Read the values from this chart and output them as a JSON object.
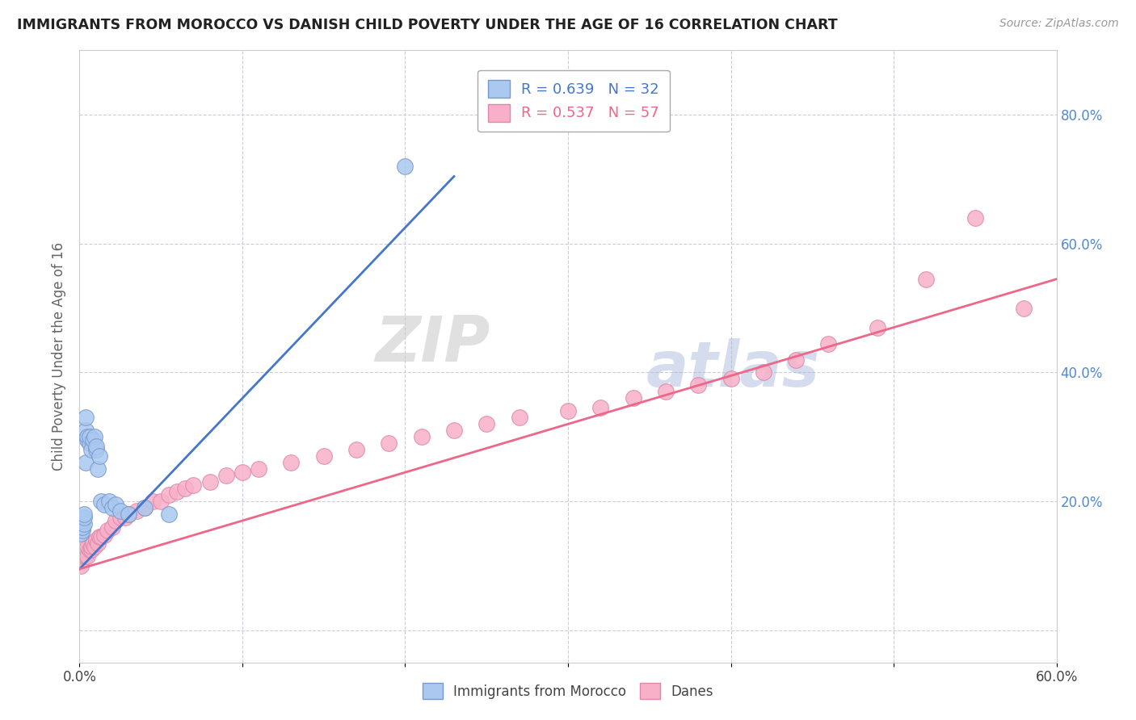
{
  "title": "IMMIGRANTS FROM MOROCCO VS DANISH CHILD POVERTY UNDER THE AGE OF 16 CORRELATION CHART",
  "source": "Source: ZipAtlas.com",
  "ylabel": "Child Poverty Under the Age of 16",
  "xlim": [
    0.0,
    0.6
  ],
  "ylim": [
    -0.05,
    0.9
  ],
  "yticks": [
    0.0,
    0.2,
    0.4,
    0.6,
    0.8
  ],
  "ytick_labels": [
    "",
    "20.0%",
    "40.0%",
    "60.0%",
    "80.0%"
  ],
  "xticks": [
    0.0,
    0.1,
    0.2,
    0.3,
    0.4,
    0.5,
    0.6
  ],
  "xtick_labels": [
    "0.0%",
    "",
    "",
    "",
    "",
    "",
    "60.0%"
  ],
  "morocco_color": "#aac8f0",
  "morocco_edge": "#7799cc",
  "danes_color": "#f8b0c8",
  "danes_edge": "#dd88aa",
  "morocco_line_color": "#4477cc",
  "danes_line_color": "#ee6688",
  "r_morocco": 0.639,
  "n_morocco": 32,
  "r_danes": 0.537,
  "n_danes": 57,
  "background_color": "#ffffff",
  "grid_color": "#ccccdd",
  "watermark_zip": "ZIP",
  "watermark_atlas": "atlas",
  "legend_label_morocco": "Immigrants from Morocco",
  "legend_label_danes": "Danes",
  "morocco_scatter_x": [
    0.001,
    0.001,
    0.002,
    0.002,
    0.002,
    0.003,
    0.003,
    0.003,
    0.004,
    0.004,
    0.004,
    0.005,
    0.005,
    0.006,
    0.006,
    0.007,
    0.008,
    0.009,
    0.01,
    0.01,
    0.011,
    0.012,
    0.013,
    0.015,
    0.018,
    0.02,
    0.022,
    0.025,
    0.03,
    0.04,
    0.055,
    0.2
  ],
  "morocco_scatter_y": [
    0.15,
    0.16,
    0.155,
    0.16,
    0.17,
    0.165,
    0.175,
    0.18,
    0.26,
    0.31,
    0.33,
    0.295,
    0.3,
    0.29,
    0.3,
    0.28,
    0.295,
    0.3,
    0.28,
    0.285,
    0.25,
    0.27,
    0.2,
    0.195,
    0.2,
    0.19,
    0.195,
    0.185,
    0.18,
    0.19,
    0.18,
    0.72
  ],
  "danes_scatter_x": [
    0.001,
    0.002,
    0.003,
    0.003,
    0.004,
    0.004,
    0.005,
    0.005,
    0.006,
    0.007,
    0.007,
    0.008,
    0.009,
    0.01,
    0.011,
    0.012,
    0.013,
    0.015,
    0.017,
    0.02,
    0.022,
    0.025,
    0.028,
    0.03,
    0.035,
    0.04,
    0.045,
    0.05,
    0.055,
    0.06,
    0.065,
    0.07,
    0.08,
    0.09,
    0.1,
    0.11,
    0.13,
    0.15,
    0.17,
    0.19,
    0.21,
    0.23,
    0.25,
    0.27,
    0.3,
    0.32,
    0.34,
    0.36,
    0.38,
    0.4,
    0.42,
    0.44,
    0.46,
    0.49,
    0.52,
    0.55,
    0.58
  ],
  "danes_scatter_y": [
    0.1,
    0.11,
    0.115,
    0.12,
    0.115,
    0.125,
    0.115,
    0.13,
    0.125,
    0.125,
    0.13,
    0.135,
    0.13,
    0.14,
    0.135,
    0.145,
    0.145,
    0.148,
    0.155,
    0.16,
    0.17,
    0.175,
    0.175,
    0.18,
    0.185,
    0.19,
    0.2,
    0.2,
    0.21,
    0.215,
    0.22,
    0.225,
    0.23,
    0.24,
    0.245,
    0.25,
    0.26,
    0.27,
    0.28,
    0.29,
    0.3,
    0.31,
    0.32,
    0.33,
    0.34,
    0.345,
    0.36,
    0.37,
    0.38,
    0.39,
    0.4,
    0.42,
    0.445,
    0.47,
    0.545,
    0.64,
    0.5
  ],
  "morocco_line_x": [
    0.0,
    0.23
  ],
  "morocco_line_y_intercept": 0.095,
  "morocco_line_slope": 2.65,
  "danes_line_x": [
    0.0,
    0.6
  ],
  "danes_line_y_intercept": 0.095,
  "danes_line_slope": 0.75
}
